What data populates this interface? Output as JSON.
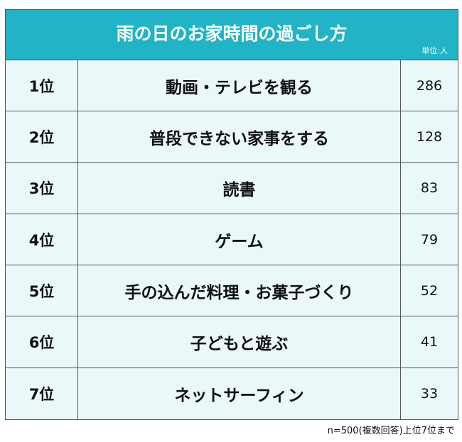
{
  "title": "雨の日のお家時間の過ごし方",
  "unit": "単位:人",
  "rows": [
    {
      "rank": "1位",
      "item": "動画・テレビを観る",
      "count": "286"
    },
    {
      "rank": "2位",
      "item": "普段できない家事をする",
      "count": "128"
    },
    {
      "rank": "3位",
      "item": "読書",
      "count": "83"
    },
    {
      "rank": "4位",
      "item": "ゲーム",
      "count": "79"
    },
    {
      "rank": "5位",
      "item": "手の込んだ料理・お菓子づくり",
      "count": "52"
    },
    {
      "rank": "6位",
      "item": "子どもと遊ぶ",
      "count": "41"
    },
    {
      "rank": "7位",
      "item": "ネットサーフィン",
      "count": "33"
    }
  ],
  "footnote": "n=500(複数回答)上位7位まで",
  "colors": {
    "header": "#21b3c6",
    "row": "#eaf8fa",
    "border": "#555555"
  }
}
